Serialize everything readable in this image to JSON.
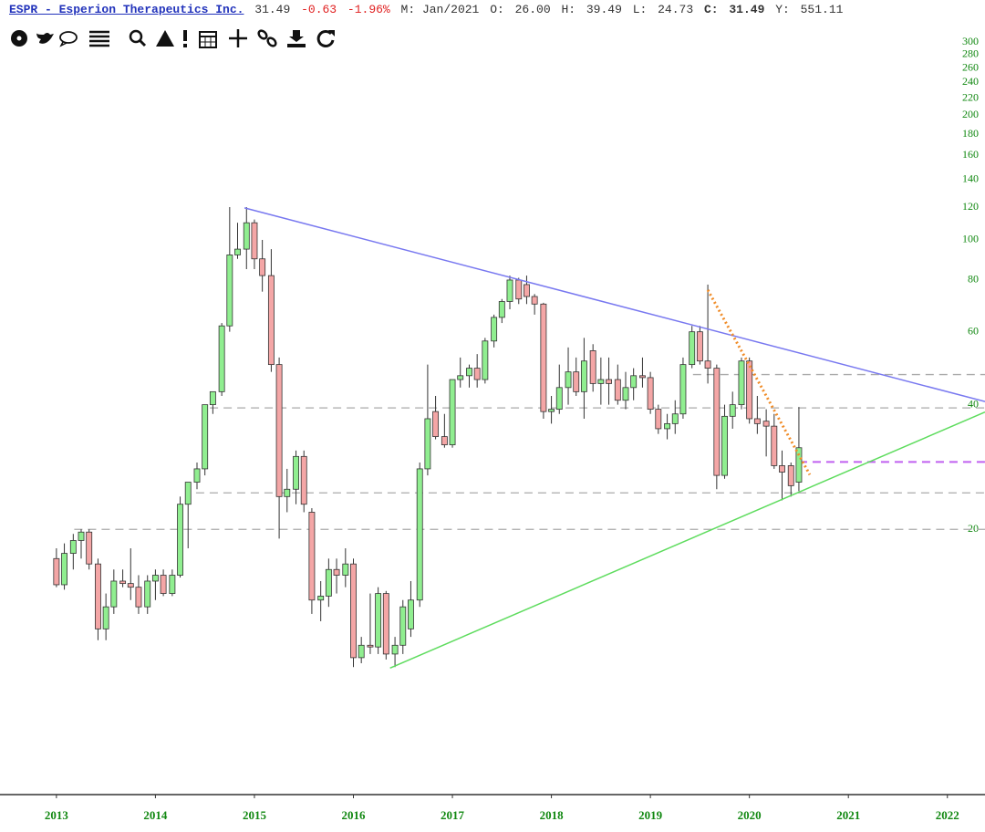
{
  "header": {
    "symbol": "ESPR - Esperion Therapeutics Inc.",
    "last": "31.49",
    "change": "-0.63",
    "change_pct": "-1.96%",
    "period": "M: Jan/2021",
    "open_label": "O:",
    "open": "26.00",
    "high_label": "H:",
    "high": "39.49",
    "low_label": "L:",
    "low": "24.73",
    "close_label": "C:",
    "close": "31.49",
    "y_label": "Y:",
    "y": "551.11"
  },
  "chart_data": {
    "type": "candlestick",
    "x": [
      2013.0,
      2013.08,
      2013.17,
      2013.25,
      2013.33,
      2013.42,
      2013.5,
      2013.58,
      2013.67,
      2013.75,
      2013.83,
      2013.92,
      2014.0,
      2014.08,
      2014.17,
      2014.25,
      2014.33,
      2014.42,
      2014.5,
      2014.58,
      2014.67,
      2014.75,
      2014.83,
      2014.92,
      2015.0,
      2015.08,
      2015.17,
      2015.25,
      2015.33,
      2015.42,
      2015.5,
      2015.58,
      2015.67,
      2015.75,
      2015.83,
      2015.92,
      2016.0,
      2016.08,
      2016.17,
      2016.25,
      2016.33,
      2016.42,
      2016.5,
      2016.58,
      2016.67,
      2016.75,
      2016.83,
      2016.92,
      2017.0,
      2017.08,
      2017.17,
      2017.25,
      2017.33,
      2017.42,
      2017.5,
      2017.58,
      2017.67,
      2017.75,
      2017.83,
      2017.92,
      2018.0,
      2018.08,
      2018.17,
      2018.25,
      2018.33,
      2018.42,
      2018.5,
      2018.58,
      2018.67,
      2018.75,
      2018.83,
      2018.92,
      2019.0,
      2019.08,
      2019.17,
      2019.25,
      2019.33,
      2019.42,
      2019.5,
      2019.58,
      2019.67,
      2019.75,
      2019.83,
      2019.92,
      2020.0,
      2020.08,
      2020.17,
      2020.25,
      2020.33,
      2020.42,
      2020.5
    ],
    "open": [
      17,
      14.7,
      17.5,
      18.8,
      19.7,
      16.5,
      11.5,
      13,
      15,
      14.8,
      14.5,
      13,
      15,
      15.5,
      14,
      15.5,
      23,
      26,
      28,
      40,
      43,
      62,
      92,
      95,
      110,
      90,
      82,
      50,
      24,
      25,
      30,
      22,
      13.5,
      13.8,
      16,
      15.5,
      16.5,
      9.8,
      10.5,
      10.4,
      14,
      10,
      10.5,
      11.5,
      13.5,
      28,
      38.5,
      33.5,
      32,
      46,
      47,
      49,
      46,
      57,
      65,
      71,
      80,
      78,
      73,
      70,
      38.5,
      39,
      44,
      48,
      43,
      54,
      45,
      46,
      46,
      41,
      44,
      47,
      46.5,
      39,
      35,
      36,
      38,
      50,
      60,
      51,
      49,
      27,
      37.5,
      40,
      51,
      37,
      36.5,
      35.5,
      28.5,
      28.5,
      26
    ],
    "high": [
      18,
      18.5,
      19.5,
      20,
      20,
      17,
      14,
      16,
      16,
      18,
      15.5,
      15.5,
      16,
      16,
      16,
      24,
      26,
      29,
      40,
      43,
      63,
      120,
      110,
      120,
      112,
      100,
      95,
      52,
      28,
      31,
      31,
      22.5,
      15,
      17,
      17,
      18,
      17,
      11,
      14,
      14.5,
      14.2,
      11,
      13.5,
      15,
      29,
      50,
      42,
      38,
      46,
      52,
      50,
      53,
      58,
      66,
      72,
      82,
      81,
      82,
      74,
      70.5,
      42,
      50,
      55,
      52,
      58,
      56,
      52,
      52,
      50,
      48,
      49,
      52,
      48,
      40,
      38,
      41,
      52,
      62,
      62,
      78,
      50,
      40,
      43,
      52,
      52,
      42,
      39,
      38,
      31,
      29,
      39.49
    ],
    "low": [
      14.5,
      14.3,
      16,
      17,
      16,
      10.8,
      10.8,
      12.5,
      14.5,
      13.5,
      12.5,
      12.5,
      13.5,
      13.8,
      13.8,
      15.3,
      18,
      25,
      27,
      38,
      42,
      60,
      90,
      85,
      85,
      75,
      48,
      19,
      22,
      23,
      22,
      12.5,
      12,
      13,
      14,
      14.5,
      9.3,
      9.5,
      10,
      10,
      9.7,
      9.3,
      10,
      11,
      13,
      27,
      33,
      31.5,
      31.5,
      44,
      44,
      44,
      45,
      55,
      63,
      68,
      70,
      70,
      66,
      37,
      36,
      38,
      40,
      42,
      37,
      43,
      40,
      40,
      40,
      39,
      41,
      44,
      38,
      34,
      33,
      34,
      37,
      49,
      50,
      45,
      25,
      26.5,
      35,
      39,
      36,
      34,
      30,
      28,
      23.5,
      24,
      24.73
    ],
    "close": [
      14.7,
      17.5,
      18.8,
      19.7,
      16.5,
      11.5,
      13,
      15,
      14.8,
      14.5,
      13,
      15,
      15.5,
      14,
      15.5,
      23,
      26,
      28,
      40,
      43,
      62,
      92,
      95,
      110,
      90,
      82,
      50,
      24,
      25,
      30,
      23,
      13.5,
      13.8,
      16,
      15.5,
      16.5,
      9.8,
      10.5,
      10.4,
      14,
      10,
      10.5,
      13,
      13.5,
      28,
      37,
      33.5,
      32,
      46,
      47,
      49,
      46,
      57,
      65,
      71,
      80,
      72,
      73,
      70,
      38.5,
      39,
      44,
      48,
      43,
      51,
      45,
      46,
      45,
      41,
      44,
      47,
      46.5,
      39,
      35,
      36,
      38,
      50,
      60,
      51,
      49,
      27,
      37.5,
      40,
      51,
      37,
      36,
      35.5,
      28.5,
      27.5,
      25.5,
      31.49
    ],
    "up_color": "#90ee90",
    "down_color": "#f4a6a6",
    "wick_color": "#333333",
    "xlim": [
      2012.43,
      2022.38
    ],
    "xticks": [
      2013,
      2014,
      2015,
      2016,
      2017,
      2018,
      2019,
      2020,
      2021,
      2022
    ],
    "ylim": [
      4.6,
      326
    ],
    "log_y": true,
    "yticks": [
      20,
      40,
      60,
      80,
      100,
      120,
      140,
      160,
      180,
      200,
      220,
      240,
      260,
      280,
      300
    ],
    "hlines": [
      {
        "value": 47.3,
        "from": 2019.43,
        "color": "#aaaaaa",
        "style": "dashed"
      },
      {
        "value": 39.3,
        "from": 2014.55,
        "color": "#aaaaaa",
        "style": "dashed"
      },
      {
        "value": 24.5,
        "from": 2014.41,
        "color": "#aaaaaa",
        "style": "dashed"
      },
      {
        "value": 20,
        "from": 2013.18,
        "color": "#aaaaaa",
        "style": "dashed"
      },
      {
        "value": 29.1,
        "from": 2020.5,
        "color": "#c060f0",
        "style": "dashed"
      }
    ],
    "trendlines": [
      {
        "x": [
          2014.9,
          2022.38
        ],
        "y": [
          119.5,
          40.7
        ],
        "color": "#7878f0",
        "style": "solid"
      },
      {
        "x": [
          2016.37,
          2022.38
        ],
        "y": [
          9.25,
          38.4
        ],
        "color": "#5edc5e",
        "style": "solid"
      },
      {
        "x": [
          2019.58,
          2020.61
        ],
        "y": [
          75.7,
          27.1
        ],
        "color": "#f08c28",
        "style": "dotted"
      }
    ]
  }
}
